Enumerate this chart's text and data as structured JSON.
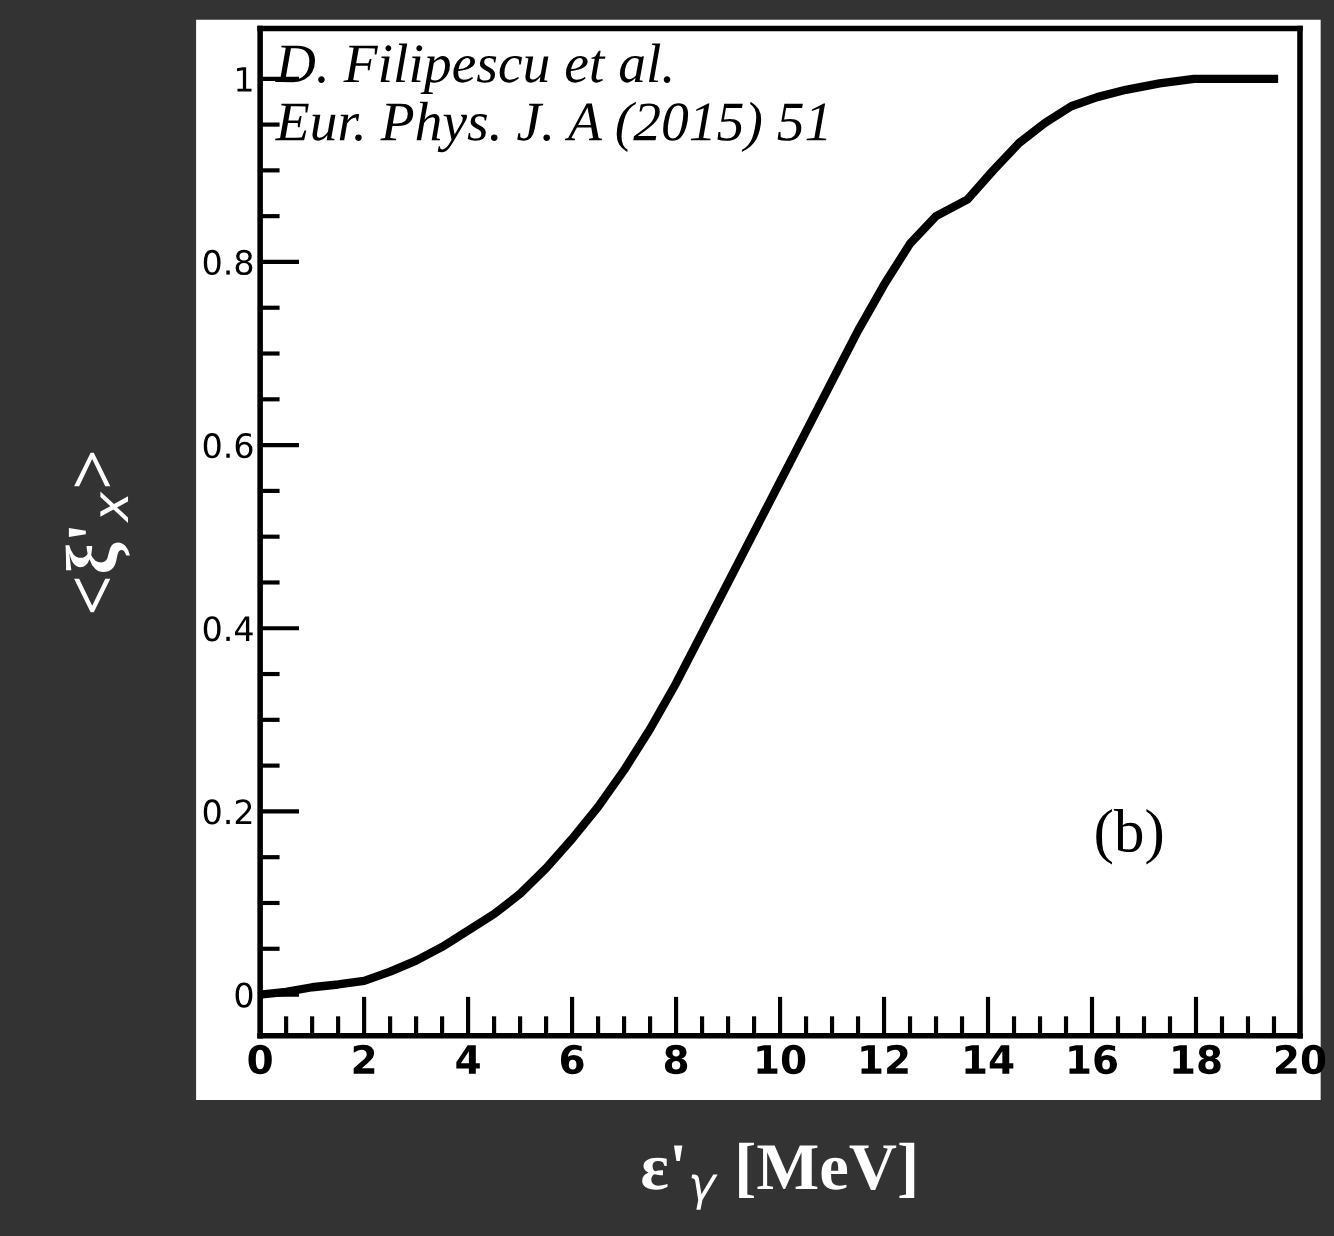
{
  "chart_data": {
    "type": "line",
    "xlabel": "ε'$_{γ}$ [MeV]",
    "ylabel": "<ξ'$_{x}$>",
    "annotations": [
      "D. Filipescu et al.\nEur. Phys. J. A (2015) 51",
      "(b)"
    ],
    "series": [
      {
        "color": "#000000",
        "x": [
          0,
          0.5,
          1,
          1.5,
          2,
          2.5,
          3,
          3.5,
          4,
          4.5,
          5,
          5.5,
          6,
          6.5,
          7,
          7.5,
          8,
          8.5,
          9,
          9.5,
          10,
          10.5,
          11,
          11.5,
          12,
          12.5,
          13,
          13.6,
          14.1,
          14.6,
          15.1,
          15.6,
          16.1,
          16.65,
          17.3,
          17.96,
          18.6,
          19.5
        ],
        "values": [
          0.0,
          0.003,
          0.008,
          0.011,
          0.015,
          0.025,
          0.037,
          0.052,
          0.07,
          0.088,
          0.11,
          0.138,
          0.17,
          0.205,
          0.245,
          0.29,
          0.34,
          0.395,
          0.45,
          0.505,
          0.56,
          0.615,
          0.67,
          0.725,
          0.775,
          0.82,
          0.85,
          0.868,
          0.9,
          0.93,
          0.952,
          0.97,
          0.98,
          0.988,
          0.995,
          1.0,
          1.0,
          1.0
        ]
      }
    ],
    "xlim": [
      0,
      20
    ],
    "ylim": [
      -0.045,
      1.055
    ],
    "xticks": [
      0,
      {
        "value": 0.5,
        "label": null
      },
      {
        "value": 1,
        "label": null
      },
      {
        "value": 1.5,
        "label": null
      },
      2,
      {
        "value": 2.5,
        "label": null
      },
      {
        "value": 3,
        "label": null
      },
      {
        "value": 3.5,
        "label": null
      },
      4,
      {
        "value": 4.5,
        "label": null
      },
      {
        "value": 5,
        "label": null
      },
      {
        "value": 5.5,
        "label": null
      },
      6,
      {
        "value": 6.5,
        "label": null
      },
      {
        "value": 7,
        "label": null
      },
      {
        "value": 7.5,
        "label": null
      },
      8,
      {
        "value": 8.5,
        "label": null
      },
      {
        "value": 9,
        "label": null
      },
      {
        "value": 9.5,
        "label": null
      },
      10,
      {
        "value": 10.5,
        "label": null
      },
      {
        "value": 11,
        "label": null
      },
      {
        "value": 11.5,
        "label": null
      },
      12,
      {
        "value": 12.5,
        "label": null
      },
      {
        "value": 13,
        "label": null
      },
      {
        "value": 13.5,
        "label": null
      },
      14,
      {
        "value": 14.5,
        "label": null
      },
      {
        "value": 15,
        "label": null
      },
      {
        "value": 15.5,
        "label": null
      },
      16,
      {
        "value": 16.5,
        "label": null
      },
      {
        "value": 17,
        "label": null
      },
      {
        "value": 17.5,
        "label": null
      },
      18,
      {
        "value": 18.5,
        "label": null
      },
      {
        "value": 19,
        "label": null
      },
      {
        "value": 19.5,
        "label": null
      },
      20
    ],
    "yticks": [
      0,
      {
        "value": 0.05,
        "label": null
      },
      {
        "value": 0.1,
        "label": null
      },
      {
        "value": 0.15,
        "label": null
      },
      0.2,
      {
        "value": 0.25,
        "label": null
      },
      {
        "value": 0.3,
        "label": null
      },
      {
        "value": 0.35,
        "label": null
      },
      0.4,
      {
        "value": 0.45,
        "label": null
      },
      {
        "value": 0.5,
        "label": null
      },
      {
        "value": 0.55,
        "label": null
      },
      0.6,
      {
        "value": 0.65,
        "label": null
      },
      {
        "value": 0.7,
        "label": null
      },
      {
        "value": 0.75,
        "label": null
      },
      0.8,
      {
        "value": 0.85,
        "label": null
      },
      {
        "value": 0.9,
        "label": null
      },
      {
        "value": 0.95,
        "label": null
      },
      1
    ],
    "grid": false,
    "legend": false,
    "marker": "none",
    "line_style": "solid"
  }
}
